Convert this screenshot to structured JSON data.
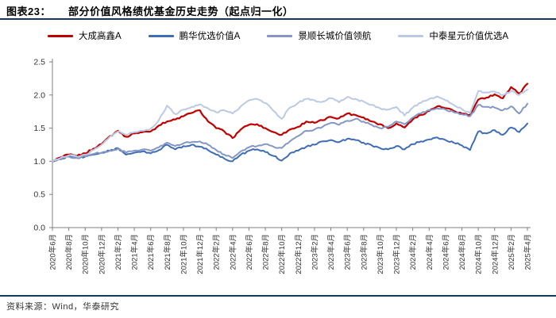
{
  "header": {
    "figure_label": "图表23：",
    "title": "部分价值风格绩优基金历史走势（起点归一化）"
  },
  "footer": {
    "source_text": "资料来源：Wind，华泰研究"
  },
  "colors": {
    "rule": "#17375E",
    "axis": "#7F7F7F",
    "tick_text": "#333333"
  },
  "chart_data": {
    "type": "line",
    "title": "部分价值风格绩优基金历史走势（起点归一化）",
    "xlabel": "",
    "ylabel": "",
    "ylim": [
      0.0,
      2.5
    ],
    "y_ticks": [
      0.0,
      0.5,
      1.0,
      1.5,
      2.0,
      2.5
    ],
    "grid": false,
    "legend_position": "top",
    "x_start": "2020-06",
    "x_end": "2025-04",
    "x_frequency": "monthly",
    "x_tick_every": 2,
    "x_tick_labels": [
      "2020年6月",
      "2020年8月",
      "2020年10月",
      "2020年12月",
      "2021年2月",
      "2021年4月",
      "2021年6月",
      "2021年8月",
      "2021年10月",
      "2021年12月",
      "2022年2月",
      "2022年4月",
      "2022年6月",
      "2022年8月",
      "2022年10月",
      "2022年12月",
      "2023年2月",
      "2023年4月",
      "2023年6月",
      "2023年8月",
      "2023年10月",
      "2023年12月",
      "2024年2月",
      "2024年4月",
      "2024年6月",
      "2024年8月",
      "2024年10月",
      "2024年12月",
      "2025年2月",
      "2025年4月"
    ],
    "series": [
      {
        "name": "大成高鑫A",
        "color": "#C00000",
        "values": [
          1.0,
          1.06,
          1.1,
          1.08,
          1.12,
          1.19,
          1.26,
          1.38,
          1.46,
          1.37,
          1.42,
          1.44,
          1.45,
          1.54,
          1.6,
          1.63,
          1.68,
          1.73,
          1.77,
          1.6,
          1.5,
          1.45,
          1.35,
          1.48,
          1.55,
          1.56,
          1.5,
          1.44,
          1.4,
          1.48,
          1.52,
          1.6,
          1.58,
          1.62,
          1.67,
          1.65,
          1.72,
          1.7,
          1.66,
          1.6,
          1.56,
          1.5,
          1.57,
          1.51,
          1.63,
          1.7,
          1.76,
          1.83,
          1.8,
          1.76,
          1.72,
          1.7,
          1.93,
          1.96,
          2.01,
          1.95,
          2.12,
          2.02,
          2.17
        ]
      },
      {
        "name": "鹏华优选价值A",
        "color": "#3E6CB5",
        "values": [
          1.0,
          1.03,
          1.08,
          1.05,
          1.07,
          1.1,
          1.13,
          1.16,
          1.2,
          1.1,
          1.13,
          1.15,
          1.12,
          1.17,
          1.25,
          1.18,
          1.23,
          1.25,
          1.22,
          1.17,
          1.1,
          1.04,
          1.0,
          1.1,
          1.16,
          1.18,
          1.14,
          1.08,
          1.01,
          1.12,
          1.16,
          1.22,
          1.25,
          1.3,
          1.32,
          1.29,
          1.34,
          1.32,
          1.28,
          1.24,
          1.2,
          1.18,
          1.23,
          1.18,
          1.26,
          1.3,
          1.33,
          1.36,
          1.32,
          1.28,
          1.24,
          1.17,
          1.45,
          1.42,
          1.47,
          1.4,
          1.51,
          1.44,
          1.57
        ]
      },
      {
        "name": "景顺长城价值领航",
        "color": "#8497C4",
        "values": [
          1.0,
          1.04,
          1.07,
          1.05,
          1.08,
          1.11,
          1.13,
          1.16,
          1.19,
          1.13,
          1.16,
          1.18,
          1.16,
          1.21,
          1.28,
          1.23,
          1.27,
          1.29,
          1.3,
          1.25,
          1.17,
          1.1,
          1.05,
          1.15,
          1.21,
          1.23,
          1.26,
          1.22,
          1.2,
          1.3,
          1.38,
          1.46,
          1.48,
          1.52,
          1.58,
          1.55,
          1.61,
          1.64,
          1.6,
          1.55,
          1.5,
          1.52,
          1.6,
          1.56,
          1.66,
          1.72,
          1.77,
          1.8,
          1.78,
          1.74,
          1.71,
          1.68,
          1.85,
          1.82,
          1.81,
          1.77,
          1.83,
          1.72,
          1.87
        ]
      },
      {
        "name": "中泰星元价值优选A",
        "color": "#BCC9E4",
        "values": [
          1.0,
          1.05,
          1.09,
          1.07,
          1.1,
          1.17,
          1.25,
          1.37,
          1.45,
          1.4,
          1.44,
          1.46,
          1.49,
          1.62,
          1.84,
          1.71,
          1.78,
          1.82,
          1.86,
          1.8,
          1.74,
          1.77,
          1.72,
          1.83,
          1.92,
          1.94,
          1.88,
          1.76,
          1.64,
          1.81,
          1.88,
          1.94,
          1.92,
          1.9,
          1.95,
          1.89,
          1.97,
          1.94,
          1.9,
          1.85,
          1.8,
          1.78,
          1.82,
          1.69,
          1.81,
          1.88,
          1.94,
          1.98,
          1.92,
          1.85,
          1.79,
          1.73,
          2.06,
          2.04,
          2.05,
          2.0,
          2.06,
          2.0,
          2.08
        ]
      }
    ]
  }
}
